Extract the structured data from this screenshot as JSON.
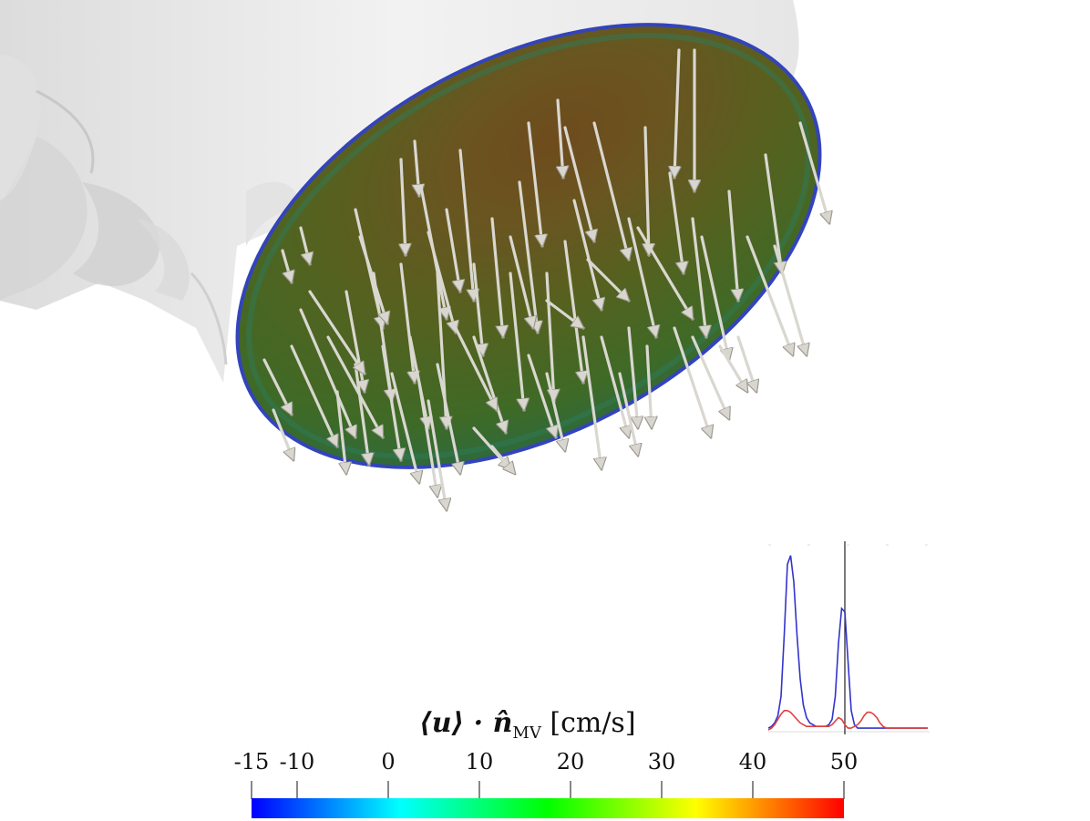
{
  "figure": {
    "description_free": true
  },
  "colorbar": {
    "title": "⟨u⟩ · n̂MV [cm/s]",
    "title_main": "⟨u⟩ · n̂",
    "title_sub": "MV",
    "title_unit": "[cm/s]",
    "ticks": [
      {
        "value": -15,
        "label": "-15"
      },
      {
        "value": -10,
        "label": "-10"
      },
      {
        "value": 0,
        "label": "0"
      },
      {
        "value": 10,
        "label": "10"
      },
      {
        "value": 20,
        "label": "20"
      },
      {
        "value": 30,
        "label": "30"
      },
      {
        "value": 40,
        "label": "40"
      },
      {
        "value": 50,
        "label": "50"
      }
    ],
    "range": [
      -15,
      50
    ],
    "colormap": [
      "#0000ff",
      "#00ffff",
      "#00ff00",
      "#ffff00",
      "#ff0000"
    ]
  },
  "chart_data": {
    "type": "line",
    "title": "",
    "xlabel": "",
    "ylabel": "",
    "x": [
      0,
      0.02,
      0.04,
      0.06,
      0.08,
      0.1,
      0.12,
      0.14,
      0.16,
      0.18,
      0.2,
      0.22,
      0.24,
      0.26,
      0.28,
      0.3,
      0.32,
      0.34,
      0.36,
      0.38,
      0.4,
      0.42,
      0.44,
      0.46,
      0.48,
      0.5,
      0.52,
      0.54,
      0.56,
      0.58,
      0.6,
      0.62,
      0.64,
      0.66,
      0.68,
      0.7,
      0.72,
      0.74,
      0.76,
      0.78,
      0.8,
      0.82,
      0.84,
      0.86,
      0.88,
      0.9,
      0.92,
      0.94,
      0.96,
      0.98,
      1.0
    ],
    "series": [
      {
        "color": "#3333cc",
        "values": [
          0.02,
          0.03,
          0.05,
          0.09,
          0.2,
          0.55,
          0.95,
          1.0,
          0.85,
          0.55,
          0.3,
          0.15,
          0.08,
          0.05,
          0.04,
          0.03,
          0.03,
          0.03,
          0.03,
          0.04,
          0.07,
          0.2,
          0.5,
          0.7,
          0.68,
          0.4,
          0.12,
          0.04,
          0.02,
          0.02,
          0.02,
          0.02,
          0.02,
          0.02,
          0.02,
          0.02,
          0.02,
          0.02,
          0.02,
          0.02,
          0.02,
          0.02,
          0.02,
          0.02,
          0.02,
          0.02,
          0.02,
          0.02,
          0.02,
          0.02,
          0.02
        ]
      },
      {
        "color": "#e04040",
        "values": [
          0.01,
          0.02,
          0.04,
          0.07,
          0.1,
          0.12,
          0.12,
          0.11,
          0.09,
          0.07,
          0.05,
          0.04,
          0.03,
          0.03,
          0.03,
          0.03,
          0.03,
          0.03,
          0.03,
          0.03,
          0.04,
          0.06,
          0.08,
          0.07,
          0.04,
          0.02,
          0.02,
          0.03,
          0.04,
          0.06,
          0.09,
          0.11,
          0.11,
          0.1,
          0.08,
          0.05,
          0.03,
          0.02,
          0.02,
          0.02,
          0.02,
          0.02,
          0.02,
          0.02,
          0.02,
          0.02,
          0.02,
          0.02,
          0.02,
          0.02,
          0.02
        ]
      }
    ],
    "marker_x": 0.48,
    "ylim": [
      0,
      1.05
    ],
    "xlim": [
      0,
      1
    ]
  }
}
